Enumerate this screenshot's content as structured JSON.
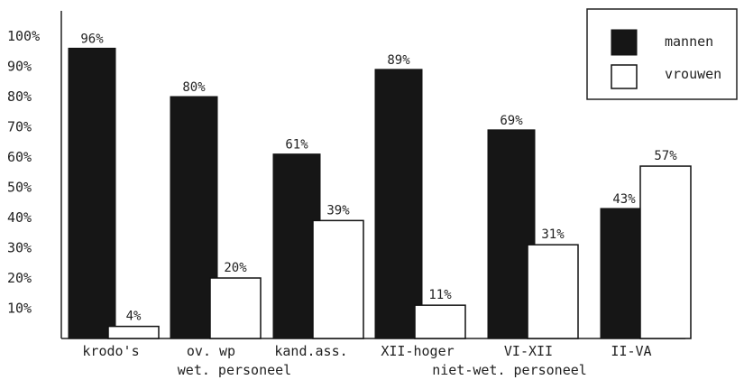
{
  "chart_data": {
    "type": "bar",
    "title": "",
    "xlabel": "",
    "ylabel": "",
    "ylim": [
      0,
      100
    ],
    "yticks": [
      "10%",
      "20%",
      "30%",
      "40%",
      "50%",
      "60%",
      "70%",
      "80%",
      "90%",
      "100%"
    ],
    "categories": [
      "krodo's",
      "ov. wp",
      "kand.ass.",
      "XII-hoger",
      "VI-XII",
      "II-VA"
    ],
    "groups": [
      {
        "label": "wet. personeel",
        "categories": [
          "krodo's",
          "ov. wp",
          "kand.ass."
        ]
      },
      {
        "label": "niet-wet. personeel",
        "categories": [
          "XII-hoger",
          "VI-XII",
          "II-VA"
        ]
      }
    ],
    "series": [
      {
        "name": "mannen",
        "color": "#161616",
        "values": [
          96,
          80,
          61,
          89,
          69,
          43
        ],
        "labels": [
          "96%",
          "80%",
          "61%",
          "89%",
          "69%",
          "43%"
        ]
      },
      {
        "name": "vrouwen",
        "color": "#ffffff",
        "values": [
          4,
          20,
          39,
          11,
          31,
          57
        ],
        "labels": [
          "4%",
          "20%",
          "39%",
          "11%",
          "31%",
          "57%"
        ]
      }
    ],
    "grid": false,
    "legend_position": "top-right"
  }
}
